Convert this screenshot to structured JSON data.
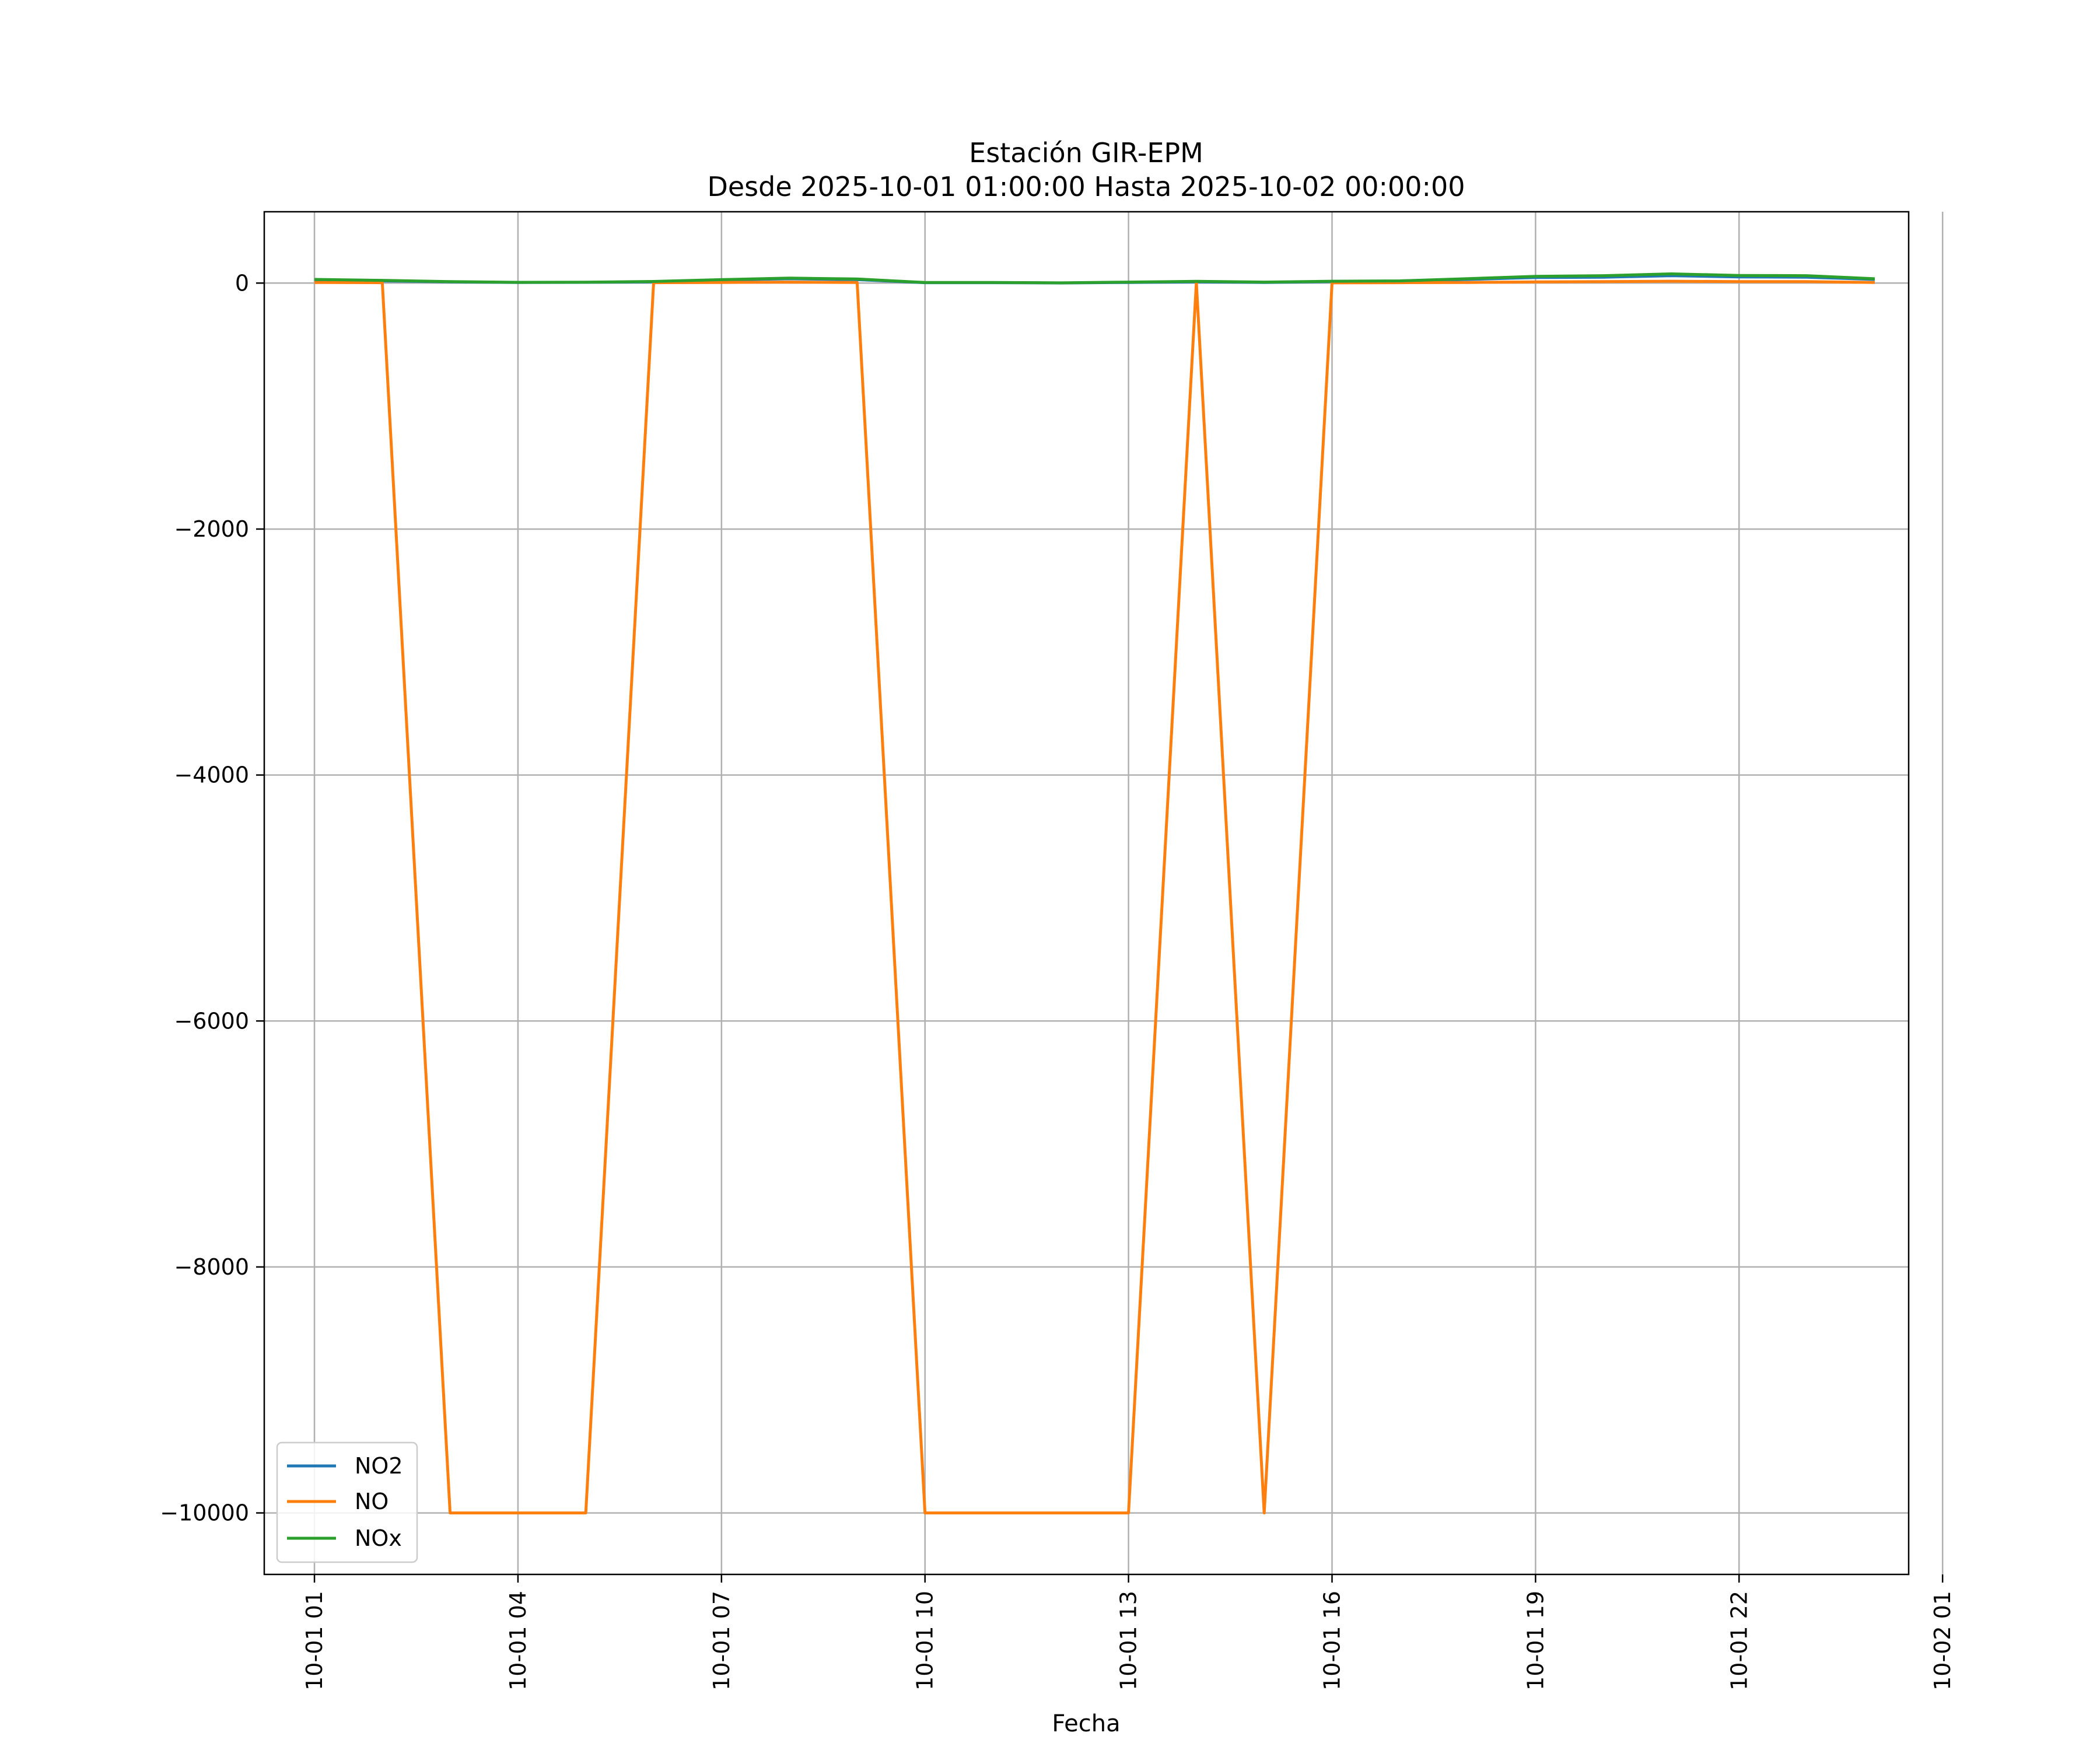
{
  "chart_data": {
    "type": "line",
    "title": "Estación GIR-EPM",
    "subtitle": "Desde 2025-10-01 01:00:00 Hasta 2025-10-02 00:00:00",
    "xlabel": "Fecha",
    "ylabel": "",
    "xlim": [
      0.26,
      24.5
    ],
    "ylim": [
      -10500,
      580
    ],
    "grid": true,
    "legend_position": "lower-left",
    "x_ticks": [
      {
        "value": 1,
        "label": "10-01 01"
      },
      {
        "value": 4,
        "label": "10-01 04"
      },
      {
        "value": 7,
        "label": "10-01 07"
      },
      {
        "value": 10,
        "label": "10-01 10"
      },
      {
        "value": 13,
        "label": "10-01 13"
      },
      {
        "value": 16,
        "label": "10-01 16"
      },
      {
        "value": 19,
        "label": "10-01 19"
      },
      {
        "value": 22,
        "label": "10-01 22"
      },
      {
        "value": 25,
        "label": "10-02 01"
      }
    ],
    "y_ticks": [
      {
        "value": 0,
        "label": "0"
      },
      {
        "value": -2000,
        "label": "−2000"
      },
      {
        "value": -4000,
        "label": "−4000"
      },
      {
        "value": -6000,
        "label": "−6000"
      },
      {
        "value": -8000,
        "label": "−8000"
      },
      {
        "value": -10000,
        "label": "−10000"
      }
    ],
    "x": [
      1,
      2,
      3,
      4,
      5,
      6,
      7,
      8,
      9,
      10,
      11,
      12,
      13,
      14,
      15,
      16,
      17,
      18,
      19,
      20,
      21,
      22,
      23,
      24
    ],
    "series": [
      {
        "name": "NO2",
        "color": "#1f77b4",
        "values": [
          25,
          18,
          10,
          5,
          6,
          10,
          25,
          35,
          28,
          3,
          3,
          1,
          5,
          10,
          5,
          12,
          15,
          30,
          45,
          48,
          60,
          50,
          48,
          30
        ]
      },
      {
        "name": "NO",
        "color": "#ff7f0e",
        "values": [
          5,
          3,
          -10000,
          -10000,
          -10000,
          3,
          5,
          8,
          5,
          -10000,
          -10000,
          -10000,
          -10000,
          5,
          -10000,
          2,
          3,
          5,
          10,
          12,
          15,
          12,
          12,
          5
        ]
      },
      {
        "name": "NOx",
        "color": "#2ca02c",
        "values": [
          30,
          22,
          12,
          6,
          7,
          13,
          28,
          40,
          33,
          5,
          5,
          2,
          8,
          14,
          8,
          15,
          18,
          36,
          55,
          60,
          75,
          62,
          60,
          35
        ]
      }
    ]
  }
}
